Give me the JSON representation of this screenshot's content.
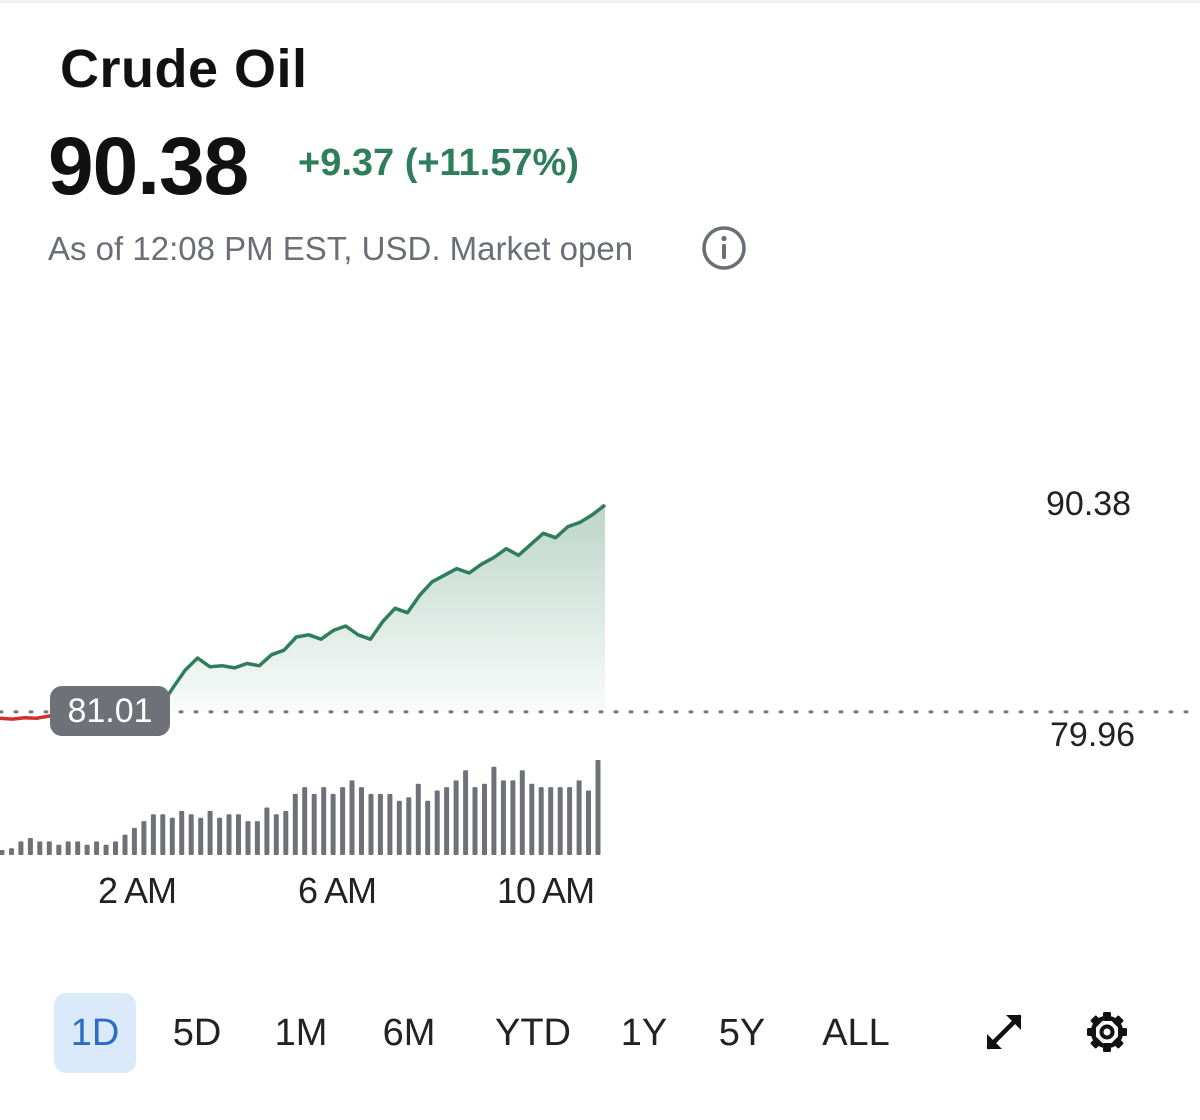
{
  "header": {
    "title": "Crude Oil",
    "price": "90.38",
    "change": "+9.37 (+11.57%)",
    "as_of": "As of 12:08 PM EST, USD. Market open",
    "info_icon": "info-circle-icon"
  },
  "chart": {
    "high_label": "90.38",
    "low_label": "79.96",
    "previous_close_label": "81.01",
    "x_ticks": [
      "2 AM",
      "6 AM",
      "10 AM"
    ]
  },
  "chart_data": {
    "type": "line",
    "xlabel": "",
    "ylabel": "",
    "previous_close": 81.01,
    "y_axis_labels": [
      90.38,
      79.96
    ],
    "ylim": [
      79.96,
      90.38
    ],
    "x_axis_ticks": [
      "2 AM",
      "6 AM",
      "10 AM"
    ],
    "colors": {
      "up": "#2e7d5b",
      "down": "#d32f2f",
      "volume": "#6e7278",
      "fill": "#2e7d5b"
    },
    "price_series": {
      "x": [
        "12:00 AM",
        "12:15 AM",
        "12:30 AM",
        "12:45 AM",
        "1:00 AM",
        "1:15 AM",
        "1:30 AM",
        "1:45 AM",
        "2:00 AM",
        "2:15 AM",
        "2:30 AM",
        "2:45 AM",
        "3:00 AM",
        "3:15 AM",
        "3:30 AM",
        "3:45 AM",
        "4:00 AM",
        "4:15 AM",
        "4:30 AM",
        "4:45 AM",
        "5:00 AM",
        "5:15 AM",
        "5:30 AM",
        "5:45 AM",
        "6:00 AM",
        "6:15 AM",
        "6:30 AM",
        "6:45 AM",
        "7:00 AM",
        "7:15 AM",
        "7:30 AM",
        "7:45 AM",
        "8:00 AM",
        "8:15 AM",
        "8:30 AM",
        "8:45 AM",
        "9:00 AM",
        "9:15 AM",
        "9:30 AM",
        "9:45 AM",
        "10:00 AM",
        "10:15 AM",
        "10:30 AM",
        "10:45 AM",
        "11:00 AM",
        "11:15 AM",
        "11:30 AM",
        "11:45 AM",
        "12:00 PM",
        "12:08 PM"
      ],
      "y": [
        80.72,
        80.68,
        80.74,
        80.72,
        80.82,
        81.0,
        81.05,
        81.03,
        81.1,
        81.12,
        81.18,
        81.2,
        81.05,
        81.25,
        82.1,
        82.9,
        83.45,
        83.05,
        83.1,
        83.0,
        83.2,
        83.1,
        83.6,
        83.8,
        84.4,
        84.5,
        84.3,
        84.7,
        84.9,
        84.5,
        84.3,
        85.1,
        85.7,
        85.5,
        86.3,
        86.9,
        87.2,
        87.5,
        87.3,
        87.7,
        88.0,
        88.4,
        88.1,
        88.6,
        89.1,
        88.9,
        89.4,
        89.6,
        89.95,
        90.38
      ]
    },
    "volume_series": {
      "values": [
        1,
        2,
        4,
        5,
        4,
        4,
        3,
        4,
        4,
        3,
        4,
        3,
        4,
        6,
        8,
        10,
        12,
        12,
        11,
        13,
        12,
        11,
        13,
        11,
        12,
        12,
        10,
        10,
        14,
        12,
        13,
        18,
        20,
        18,
        20,
        18,
        20,
        22,
        20,
        18,
        18,
        18,
        16,
        17,
        21,
        16,
        19,
        20,
        22,
        25,
        20,
        21,
        26,
        22,
        22,
        25,
        21,
        20,
        20,
        20,
        20,
        22,
        19,
        28
      ]
    }
  },
  "range_buttons": [
    {
      "label": "1D",
      "active": true
    },
    {
      "label": "5D",
      "active": false
    },
    {
      "label": "1M",
      "active": false
    },
    {
      "label": "6M",
      "active": false
    },
    {
      "label": "YTD",
      "active": false
    },
    {
      "label": "1Y",
      "active": false
    },
    {
      "label": "5Y",
      "active": false
    },
    {
      "label": "ALL",
      "active": false
    }
  ],
  "toolbar": {
    "expand_icon": "expand-arrows-icon",
    "settings_icon": "gear-icon"
  }
}
